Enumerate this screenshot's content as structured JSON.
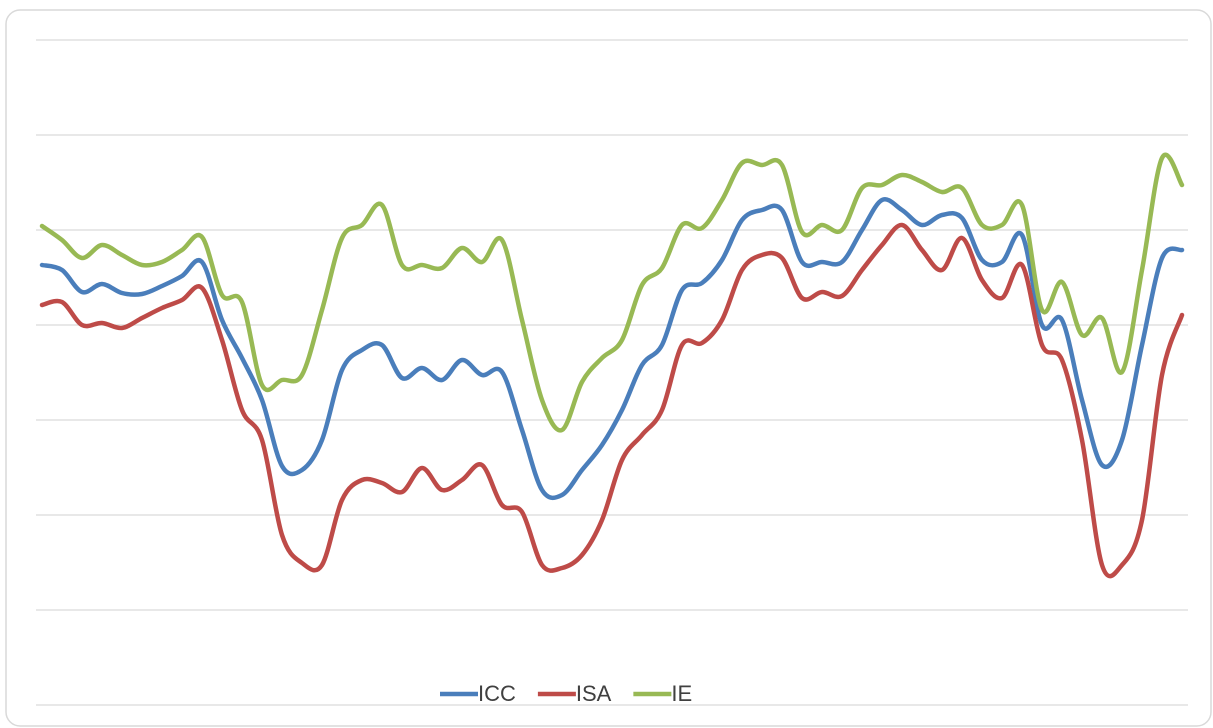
{
  "chart_data": {
    "type": "line",
    "categories": [
      null,
      null,
      null,
      null,
      null,
      null,
      null,
      null,
      null,
      null,
      null,
      null,
      null,
      null,
      null,
      null,
      null,
      null,
      null,
      null,
      null,
      null,
      null,
      null,
      null,
      null,
      null,
      null,
      null,
      null,
      null,
      null,
      null,
      null,
      null,
      null,
      null,
      null,
      null,
      null,
      null,
      null,
      null,
      null,
      null,
      null,
      null,
      null,
      null,
      null,
      null,
      null,
      null,
      null,
      null,
      null,
      null,
      null
    ],
    "ylim": [
      0,
      665
    ],
    "yticks": [
      0,
      95,
      190,
      285,
      380,
      475,
      570,
      665
    ],
    "grid": true,
    "legend": "bottom",
    "series": [
      {
        "name": "ICC",
        "color": "#4a7ebb",
        "values": [
          440,
          435,
          413,
          421,
          412,
          411,
          419,
          429,
          443,
          385,
          347,
          305,
          239,
          235,
          265,
          335,
          355,
          360,
          327,
          337,
          325,
          345,
          330,
          333,
          275,
          215,
          210,
          235,
          260,
          295,
          340,
          360,
          415,
          422,
          445,
          485,
          495,
          495,
          443,
          443,
          443,
          475,
          505,
          495,
          480,
          490,
          487,
          445,
          443,
          470,
          380,
          385,
          305,
          240,
          265,
          360,
          447,
          455
        ]
      },
      {
        "name": "ISA",
        "color": "#be4b48",
        "values": [
          400,
          403,
          380,
          382,
          377,
          387,
          397,
          405,
          417,
          365,
          295,
          265,
          170,
          142,
          140,
          205,
          225,
          222,
          213,
          237,
          215,
          225,
          240,
          200,
          193,
          140,
          137,
          150,
          185,
          245,
          270,
          295,
          360,
          362,
          385,
          435,
          450,
          447,
          407,
          413,
          409,
          435,
          460,
          480,
          455,
          435,
          467,
          425,
          407,
          440,
          360,
          345,
          265,
          140,
          140,
          185,
          330,
          390
        ]
      },
      {
        "name": "IE",
        "color": "#98b954",
        "values": [
          479,
          465,
          447,
          460,
          450,
          440,
          443,
          455,
          468,
          410,
          403,
          320,
          325,
          330,
          395,
          467,
          480,
          500,
          440,
          440,
          437,
          457,
          443,
          465,
          385,
          305,
          275,
          323,
          347,
          365,
          420,
          437,
          480,
          477,
          505,
          542,
          540,
          540,
          473,
          480,
          475,
          517,
          520,
          530,
          523,
          513,
          517,
          480,
          480,
          500,
          395,
          423,
          370,
          387,
          333,
          435,
          547,
          520
        ]
      }
    ]
  }
}
